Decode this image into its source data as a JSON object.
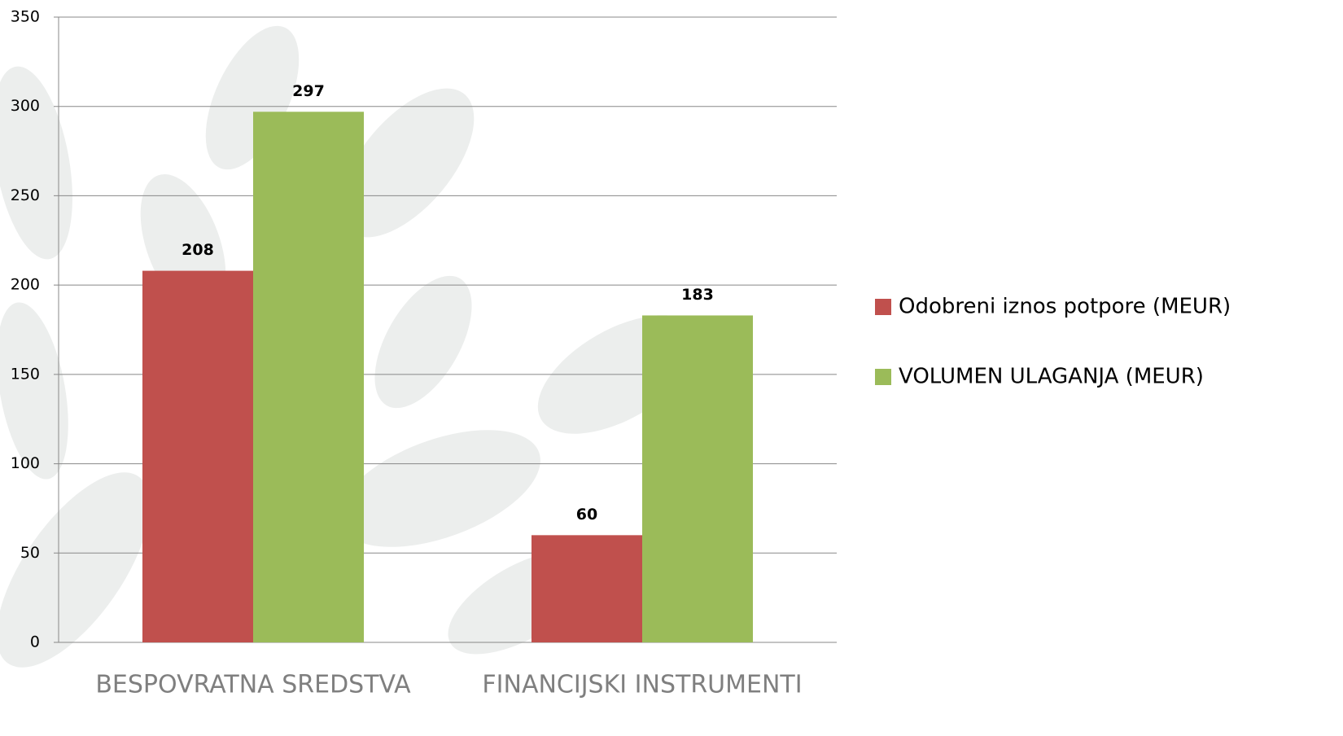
{
  "chart_data": {
    "type": "bar",
    "categories": [
      "BESPOVRATNA SREDSTVA",
      "FINANCIJSKI INSTRUMENTI"
    ],
    "series": [
      {
        "name": "Odobreni iznos potpore (MEUR)",
        "color": "#c0504d",
        "values": [
          208,
          60
        ]
      },
      {
        "name": "VOLUMEN ULAGANJA (MEUR)",
        "color": "#9bbb59",
        "values": [
          297,
          183
        ]
      }
    ],
    "ylim": [
      0,
      350
    ],
    "yticks": [
      0,
      50,
      100,
      150,
      200,
      250,
      300,
      350
    ],
    "grid": true,
    "legend": "right"
  }
}
